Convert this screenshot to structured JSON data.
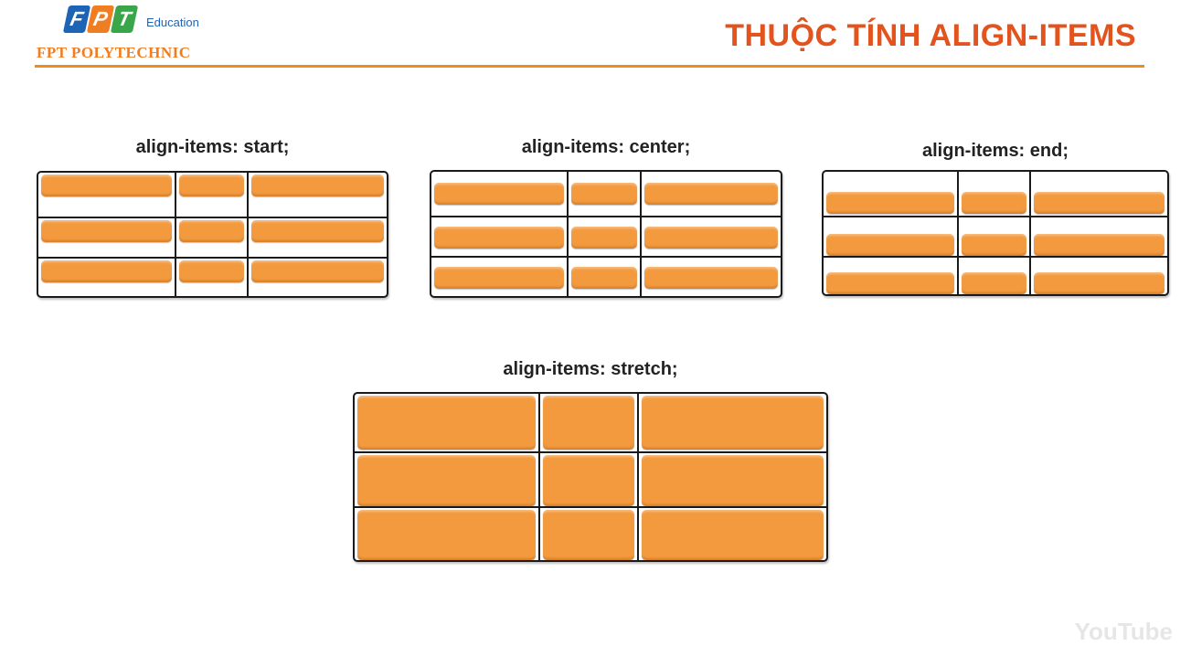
{
  "header": {
    "logo_letters": [
      "F",
      "P",
      "T"
    ],
    "logo_colors": [
      "#1e64b4",
      "#ef7d22",
      "#3aa64a"
    ],
    "logo_suffix": "Education",
    "school_name": "FPT POLYTECHNIC",
    "title": "THUỘC TÍNH ALIGN-ITEMS"
  },
  "demos": [
    {
      "label": "align-items: start;",
      "align": "start"
    },
    {
      "label": "align-items: center;",
      "align": "center"
    },
    {
      "label": "align-items: end;",
      "align": "end"
    },
    {
      "label": "align-items: stretch;",
      "align": "stretch"
    }
  ],
  "watermark": "YouTube",
  "colors": {
    "accent": "#ef8c1e",
    "bar": "#f39a3e",
    "title": "#e2531e"
  }
}
